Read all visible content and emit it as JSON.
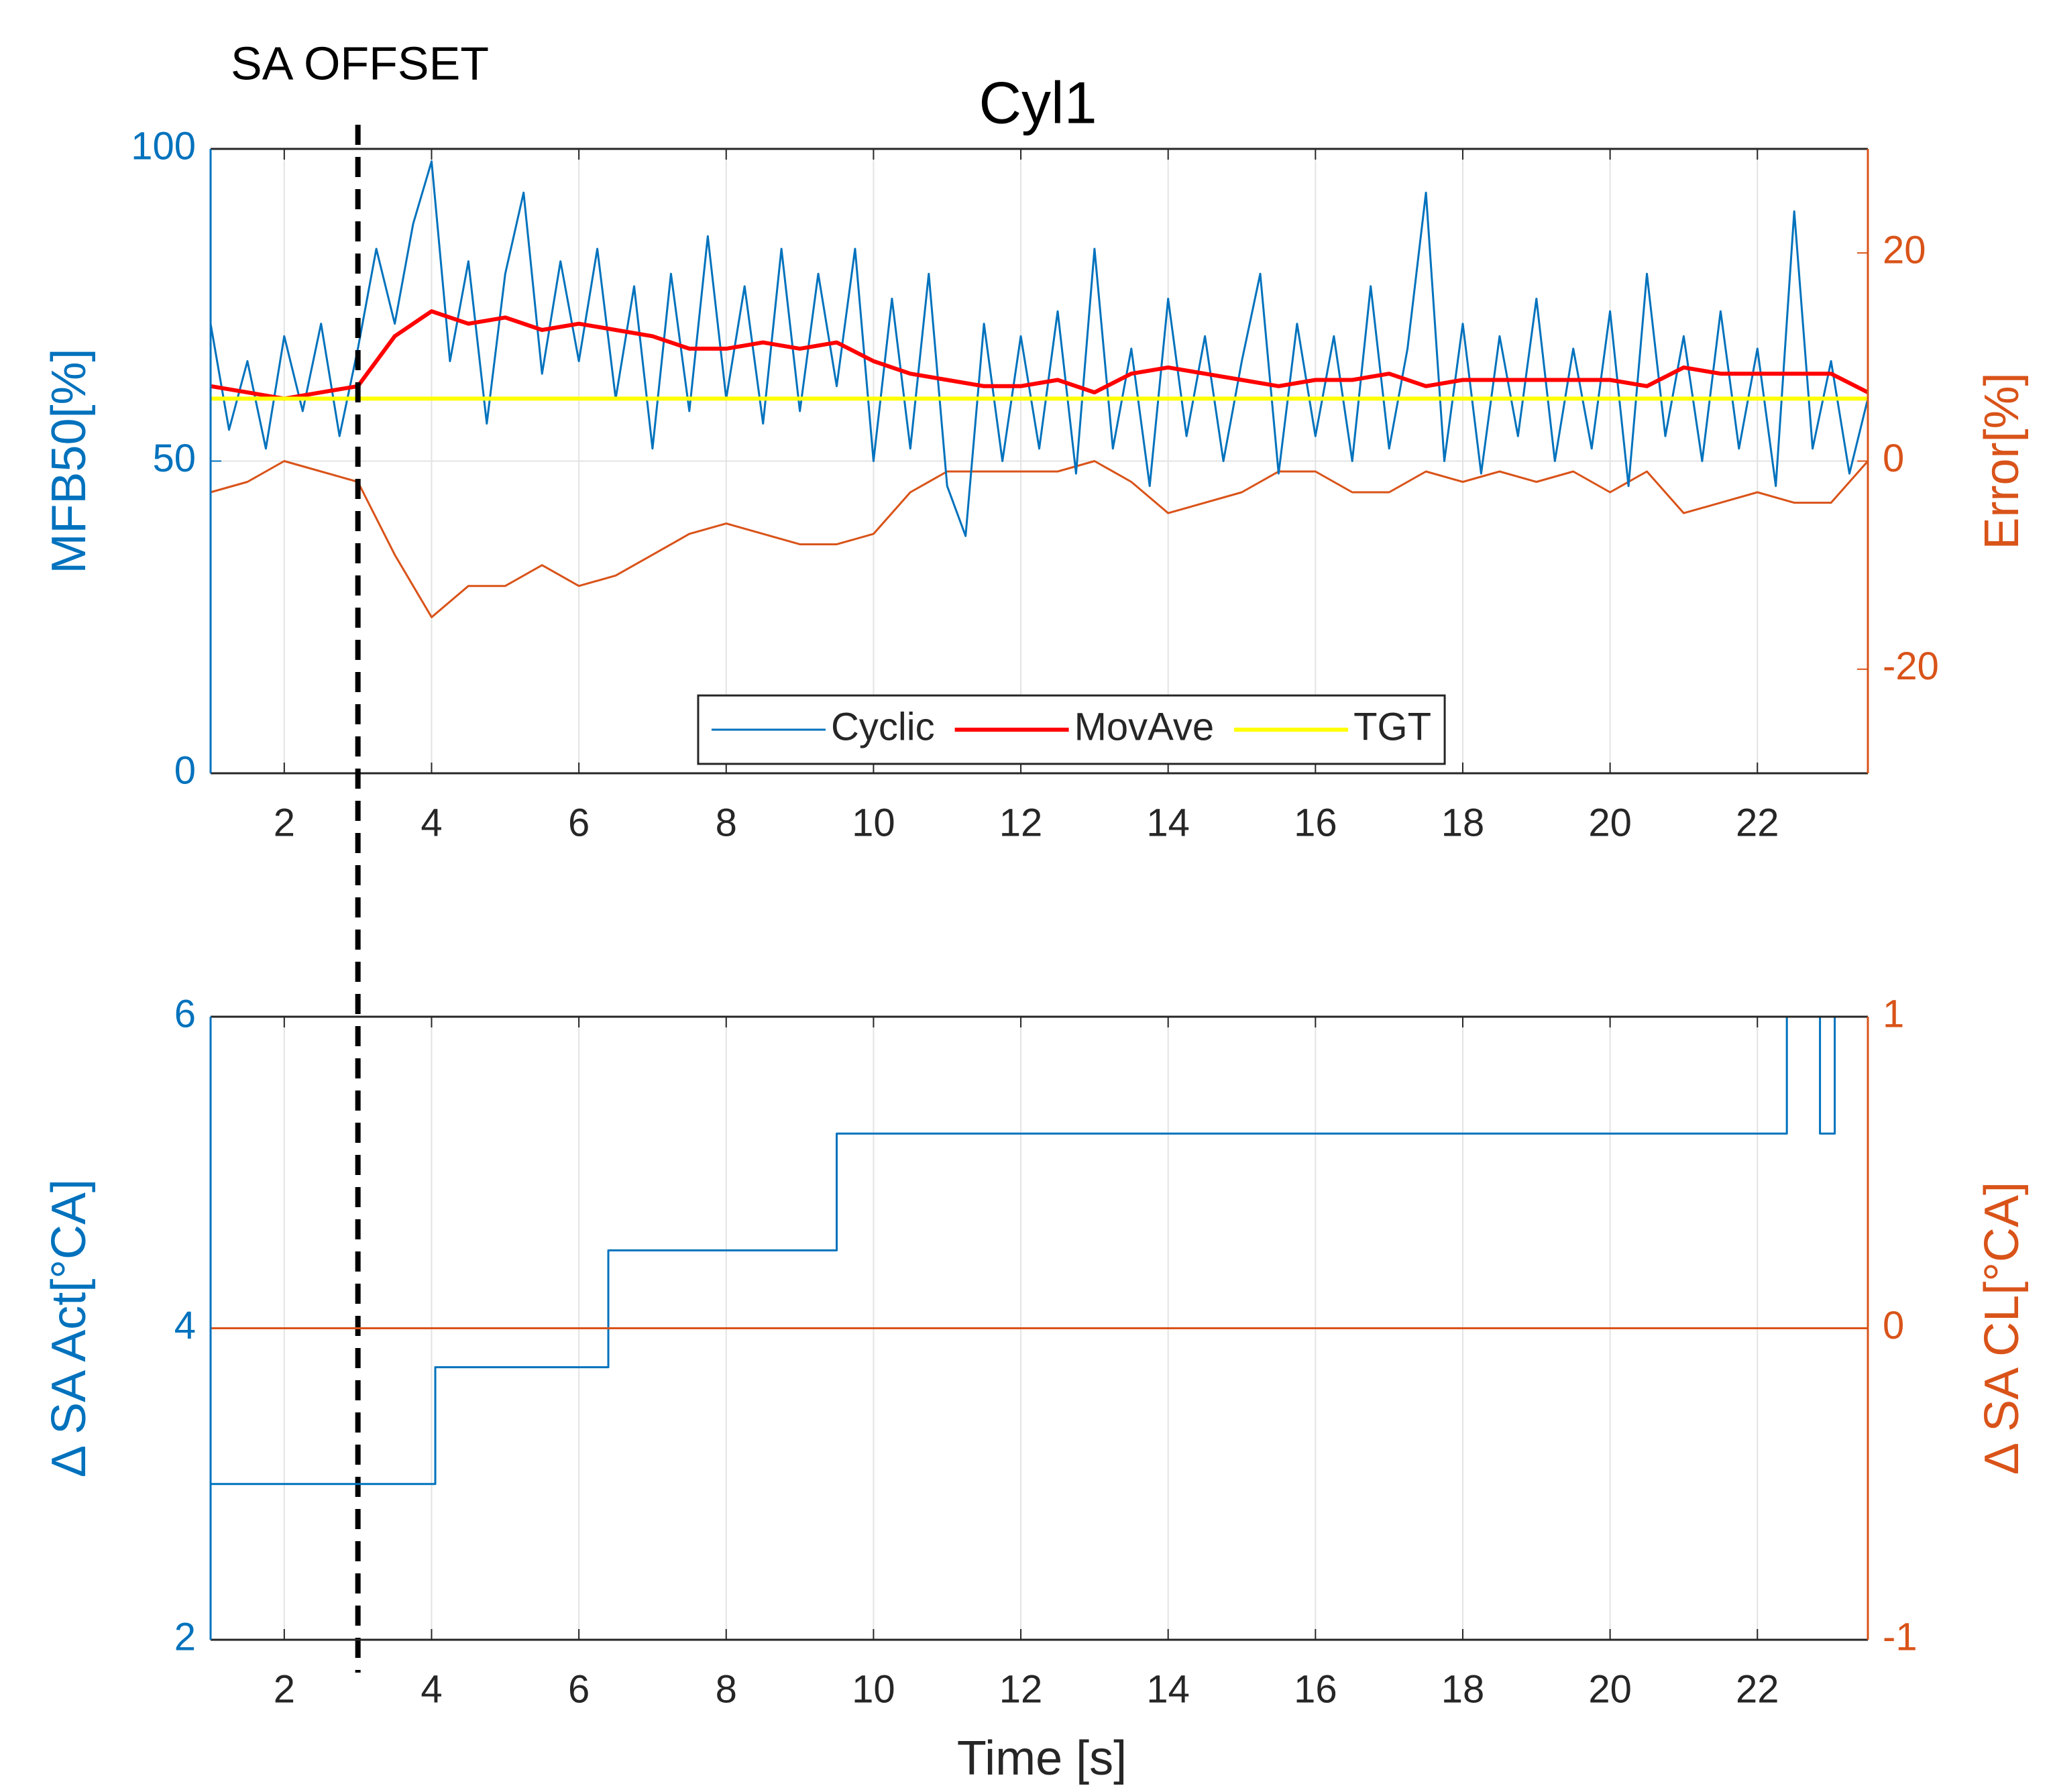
{
  "chart_data": [
    {
      "type": "line",
      "title": "Cyl1",
      "ylabel": "MFB50[%]",
      "y2label": "Error[%]",
      "xlim": [
        1,
        23.5
      ],
      "xticks": [
        2,
        4,
        6,
        8,
        10,
        12,
        14,
        16,
        18,
        20,
        22
      ],
      "ylim": [
        0,
        100
      ],
      "yticks": [
        0,
        50,
        100
      ],
      "y2lim": [
        -30,
        30
      ],
      "y2ticks": [
        -20,
        0,
        20
      ],
      "grid": true,
      "legend": "bottom",
      "axis_colors": {
        "y": "#0072bd",
        "y2": "#d95319"
      },
      "annotations": [
        {
          "text": "SA OFFSET",
          "x": 3
        }
      ],
      "series": [
        {
          "name": "Cyclic",
          "color": "#0072bd",
          "x": [
            1,
            1.25,
            1.5,
            1.75,
            2,
            2.25,
            2.5,
            2.75,
            3,
            3.25,
            3.5,
            3.75,
            4,
            4.25,
            4.5,
            4.75,
            5,
            5.25,
            5.5,
            5.75,
            6,
            6.25,
            6.5,
            6.75,
            7,
            7.25,
            7.5,
            7.75,
            8,
            8.25,
            8.5,
            8.75,
            9,
            9.25,
            9.5,
            9.75,
            10,
            10.25,
            10.5,
            10.75,
            11,
            11.25,
            11.5,
            11.75,
            12,
            12.25,
            12.5,
            12.75,
            13,
            13.25,
            13.5,
            13.75,
            14,
            14.25,
            14.5,
            14.75,
            15,
            15.25,
            15.5,
            15.75,
            16,
            16.25,
            16.5,
            16.75,
            17,
            17.25,
            17.5,
            17.75,
            18,
            18.25,
            18.5,
            18.75,
            19,
            19.25,
            19.5,
            19.75,
            20,
            20.25,
            20.5,
            20.75,
            21,
            21.25,
            21.5,
            21.75,
            22,
            22.25,
            22.5,
            22.75,
            23,
            23.25,
            23.5
          ],
          "values": [
            72,
            55,
            66,
            52,
            70,
            58,
            72,
            54,
            68,
            84,
            72,
            88,
            98,
            66,
            82,
            56,
            80,
            93,
            64,
            82,
            66,
            84,
            60,
            78,
            52,
            80,
            58,
            86,
            60,
            78,
            56,
            84,
            58,
            80,
            62,
            84,
            50,
            76,
            52,
            80,
            46,
            38,
            72,
            50,
            70,
            52,
            74,
            48,
            84,
            52,
            68,
            46,
            76,
            54,
            70,
            50,
            66,
            80,
            48,
            72,
            54,
            70,
            50,
            78,
            52,
            68,
            93,
            50,
            72,
            48,
            70,
            54,
            76,
            50,
            68,
            52,
            74,
            46,
            80,
            54,
            70,
            50,
            74,
            52,
            68,
            46,
            90,
            52,
            66,
            48,
            60
          ]
        },
        {
          "name": "MovAve",
          "color": "#ff0000",
          "x": [
            1,
            1.5,
            2,
            2.5,
            3,
            3.5,
            4,
            4.5,
            5,
            5.5,
            6,
            6.5,
            7,
            7.5,
            8,
            8.5,
            9,
            9.5,
            10,
            10.5,
            11,
            11.5,
            12,
            12.5,
            13,
            13.5,
            14,
            14.5,
            15,
            15.5,
            16,
            16.5,
            17,
            17.5,
            18,
            18.5,
            19,
            19.5,
            20,
            20.5,
            21,
            21.5,
            22,
            22.5,
            23,
            23.5
          ],
          "values": [
            62,
            61,
            60,
            61,
            62,
            70,
            74,
            72,
            73,
            71,
            72,
            71,
            70,
            68,
            68,
            69,
            68,
            69,
            66,
            64,
            63,
            62,
            62,
            63,
            61,
            64,
            65,
            64,
            63,
            62,
            63,
            63,
            64,
            62,
            63,
            63,
            63,
            63,
            63,
            62,
            65,
            64,
            64,
            64,
            64,
            61
          ]
        },
        {
          "name": "TGT",
          "color": "#ffff00",
          "x": [
            1,
            23.5
          ],
          "values": [
            60,
            60
          ]
        },
        {
          "color": "#d95319",
          "axis": "y2",
          "x": [
            1,
            1.5,
            2,
            2.5,
            3,
            3.5,
            4,
            4.5,
            5,
            5.5,
            6,
            6.5,
            7,
            7.5,
            8,
            8.5,
            9,
            9.5,
            10,
            10.5,
            11,
            11.5,
            12,
            12.5,
            13,
            13.5,
            14,
            14.5,
            15,
            15.5,
            16,
            16.5,
            17,
            17.5,
            18,
            18.5,
            19,
            19.5,
            20,
            20.5,
            21,
            21.5,
            22,
            22.5,
            23,
            23.5
          ],
          "values": [
            -3,
            -2,
            0,
            -1,
            -2,
            -9,
            -15,
            -12,
            -12,
            -10,
            -12,
            -11,
            -9,
            -7,
            -6,
            -7,
            -8,
            -8,
            -7,
            -3,
            -1,
            -1,
            -1,
            -1,
            0,
            -2,
            -5,
            -4,
            -3,
            -1,
            -1,
            -3,
            -3,
            -1,
            -2,
            -1,
            -2,
            -1,
            -3,
            -1,
            -5,
            -4,
            -3,
            -4,
            -4,
            0
          ]
        }
      ]
    },
    {
      "type": "line",
      "ylabel": "Δ SA Act[°CA]",
      "y2label": "Δ SA CL[°CA]",
      "xlabel": "Time [s]",
      "xlim": [
        1,
        23.5
      ],
      "xticks": [
        2,
        4,
        6,
        8,
        10,
        12,
        14,
        16,
        18,
        20,
        22
      ],
      "ylim": [
        2,
        6
      ],
      "yticks": [
        2,
        4,
        6
      ],
      "y2lim": [
        -1,
        1
      ],
      "y2ticks": [
        -1,
        0,
        1
      ],
      "grid": true,
      "axis_colors": {
        "y": "#0072bd",
        "y2": "#d95319"
      },
      "series": [
        {
          "color": "#0072bd",
          "x": [
            1,
            4.05,
            4.05,
            6.4,
            6.4,
            9.5,
            9.5,
            22.4,
            22.4,
            22.85,
            22.85,
            23.05,
            23.05,
            23.5
          ],
          "values": [
            3,
            3,
            3.75,
            3.75,
            4.5,
            4.5,
            5.25,
            5.25,
            6,
            6,
            5.25,
            5.25,
            6,
            6
          ]
        },
        {
          "color": "#d95319",
          "axis": "y2",
          "x": [
            1,
            23.5
          ],
          "values": [
            0,
            0
          ]
        }
      ]
    }
  ]
}
